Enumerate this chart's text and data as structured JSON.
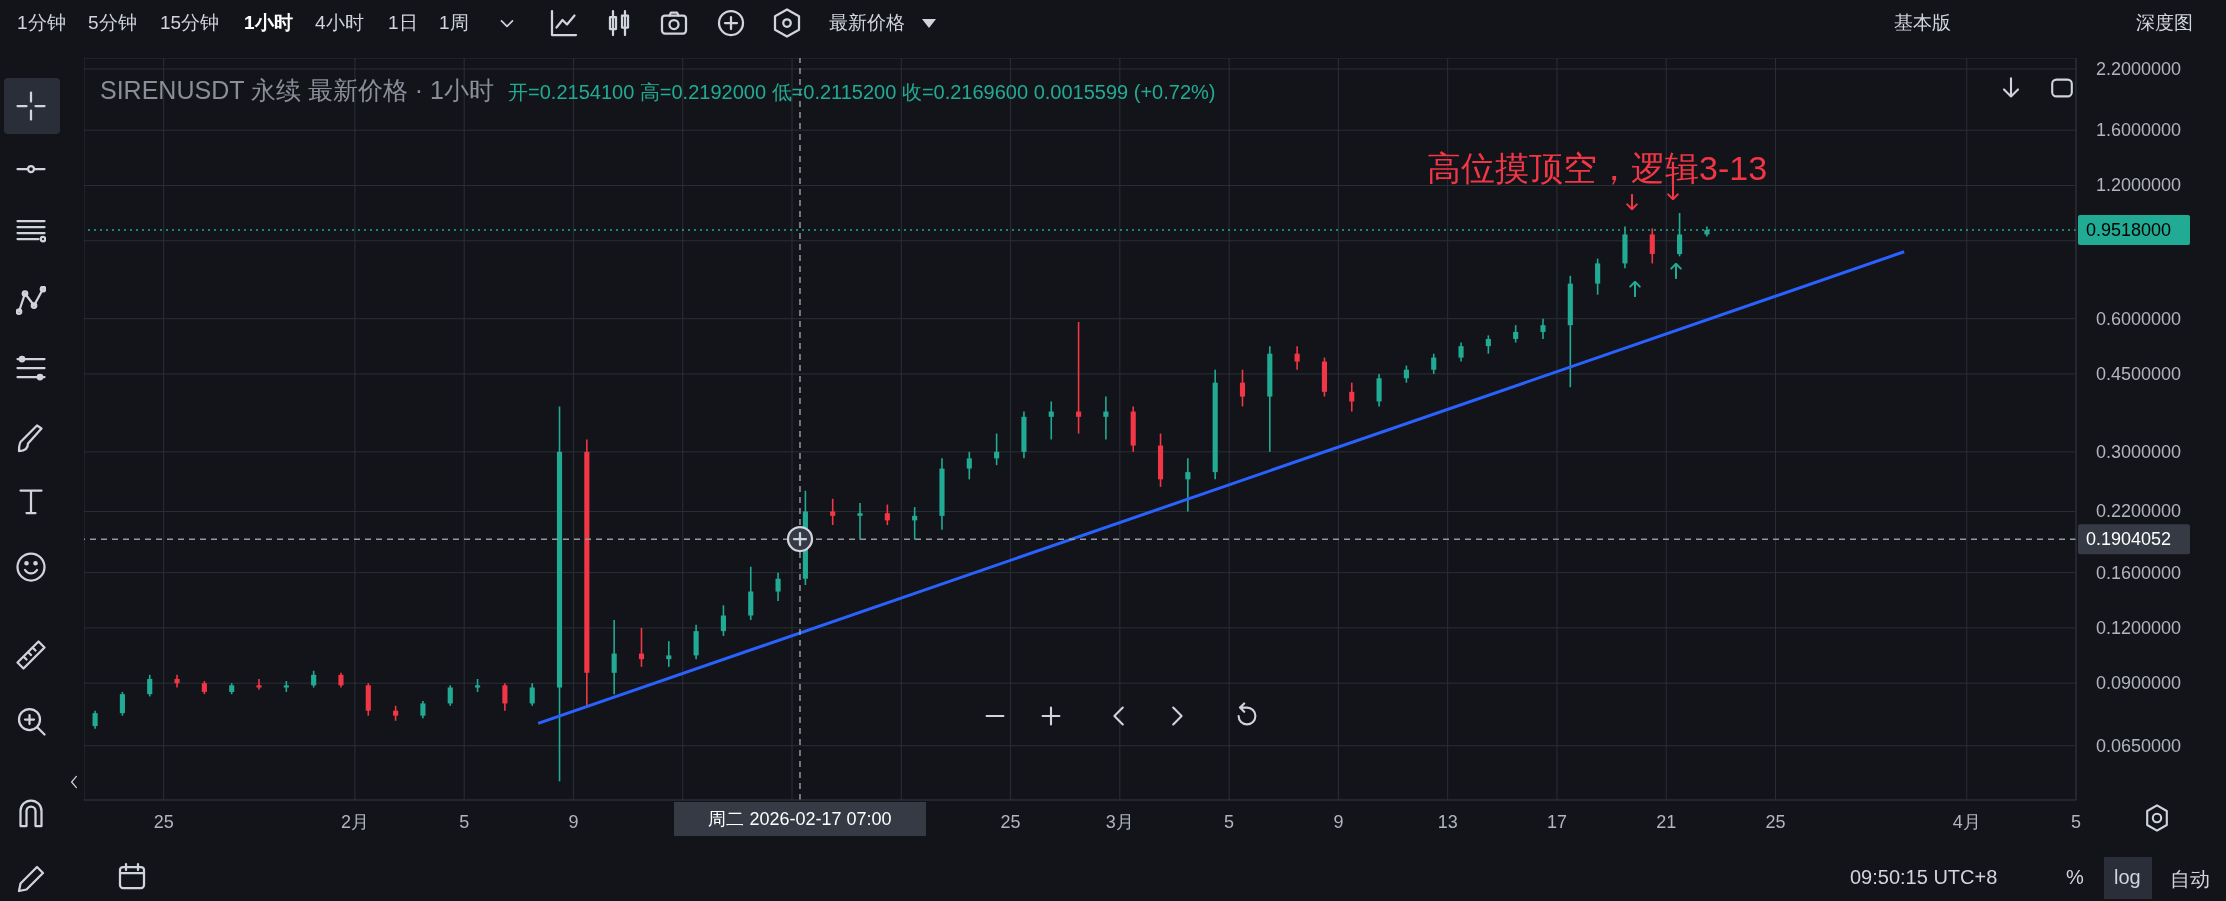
{
  "chart_data": {
    "type": "candlestick",
    "title": "SIRENUSDT 永续 最新价格 · 1小时",
    "subtitle": "开=0.2154100 高=0.2192000 低=0.2115200 收=0.2169600 0.0015599 (+0.72%)",
    "series": [
      {
        "type": "line",
        "color": "#2962ff",
        "x": [
          "2026-02-07T17:00",
          "2026-03-29T17:00"
        ],
        "values": [
          0.073,
          0.85
        ]
      },
      {
        "x": [
          "2026-01-22T12:00",
          "2026-01-23T12:00",
          "2026-01-24T12:00",
          "2026-01-25T12:00",
          "2026-01-26T12:00",
          "2026-01-27T12:00",
          "2026-01-28T12:00",
          "2026-01-29T12:00",
          "2026-01-30T12:00",
          "2026-01-31T12:00",
          "2026-02-01T12:00",
          "2026-02-02T12:00",
          "2026-02-03T12:00",
          "2026-02-04T12:00",
          "2026-02-05T12:00",
          "2026-02-06T12:00",
          "2026-02-07T12:00",
          "2026-02-08T12:00",
          "2026-02-09T12:00",
          "2026-02-10T12:00",
          "2026-02-11T12:00",
          "2026-02-12T12:00",
          "2026-02-13T12:00",
          "2026-02-14T12:00",
          "2026-02-15T12:00",
          "2026-02-16T12:00",
          "2026-02-17T12:00",
          "2026-02-18T12:00",
          "2026-02-19T12:00",
          "2026-02-20T12:00",
          "2026-02-21T12:00",
          "2026-02-22T12:00",
          "2026-02-23T12:00",
          "2026-02-24T12:00",
          "2026-02-25T12:00",
          "2026-02-26T12:00",
          "2026-02-27T12:00",
          "2026-02-28T12:00",
          "2026-03-01T12:00",
          "2026-03-02T12:00",
          "2026-03-03T12:00",
          "2026-03-04T12:00",
          "2026-03-05T12:00",
          "2026-03-06T12:00",
          "2026-03-07T12:00",
          "2026-03-08T12:00",
          "2026-03-09T12:00",
          "2026-03-10T12:00",
          "2026-03-11T12:00",
          "2026-03-12T12:00",
          "2026-03-13T12:00",
          "2026-03-14T12:00",
          "2026-03-15T12:00",
          "2026-03-16T12:00",
          "2026-03-17T12:00",
          "2026-03-18T12:00",
          "2026-03-19T12:00",
          "2026-03-20T12:00",
          "2026-03-21T12:00",
          "2026-03-22T12:00"
        ],
        "ohlc": [
          [
            0.072,
            0.078,
            0.071,
            0.077
          ],
          [
            0.077,
            0.086,
            0.076,
            0.085
          ],
          [
            0.085,
            0.094,
            0.084,
            0.092
          ],
          [
            0.092,
            0.094,
            0.088,
            0.09
          ],
          [
            0.09,
            0.091,
            0.085,
            0.086
          ],
          [
            0.086,
            0.09,
            0.085,
            0.089
          ],
          [
            0.089,
            0.092,
            0.087,
            0.088
          ],
          [
            0.088,
            0.091,
            0.086,
            0.089
          ],
          [
            0.089,
            0.096,
            0.088,
            0.094
          ],
          [
            0.094,
            0.095,
            0.088,
            0.089
          ],
          [
            0.089,
            0.09,
            0.076,
            0.078
          ],
          [
            0.078,
            0.08,
            0.074,
            0.076
          ],
          [
            0.076,
            0.082,
            0.075,
            0.081
          ],
          [
            0.081,
            0.089,
            0.08,
            0.088
          ],
          [
            0.088,
            0.092,
            0.086,
            0.089
          ],
          [
            0.089,
            0.09,
            0.078,
            0.081
          ],
          [
            0.081,
            0.09,
            0.08,
            0.088
          ],
          [
            0.088,
            0.38,
            0.054,
            0.3
          ],
          [
            0.3,
            0.32,
            0.08,
            0.095
          ],
          [
            0.095,
            0.125,
            0.085,
            0.105
          ],
          [
            0.105,
            0.12,
            0.098,
            0.102
          ],
          [
            0.102,
            0.112,
            0.098,
            0.104
          ],
          [
            0.104,
            0.122,
            0.102,
            0.118
          ],
          [
            0.118,
            0.135,
            0.115,
            0.128
          ],
          [
            0.128,
            0.165,
            0.125,
            0.145
          ],
          [
            0.145,
            0.16,
            0.138,
            0.155
          ],
          [
            0.155,
            0.245,
            0.15,
            0.22
          ],
          [
            0.22,
            0.235,
            0.205,
            0.215
          ],
          [
            0.215,
            0.23,
            0.19,
            0.218
          ],
          [
            0.218,
            0.228,
            0.205,
            0.21
          ],
          [
            0.21,
            0.225,
            0.19,
            0.215
          ],
          [
            0.215,
            0.29,
            0.2,
            0.275
          ],
          [
            0.275,
            0.3,
            0.26,
            0.29
          ],
          [
            0.29,
            0.33,
            0.28,
            0.3
          ],
          [
            0.3,
            0.37,
            0.29,
            0.36
          ],
          [
            0.36,
            0.39,
            0.32,
            0.37
          ],
          [
            0.37,
            0.59,
            0.33,
            0.36
          ],
          [
            0.36,
            0.4,
            0.32,
            0.37
          ],
          [
            0.37,
            0.38,
            0.3,
            0.31
          ],
          [
            0.31,
            0.33,
            0.25,
            0.26
          ],
          [
            0.26,
            0.29,
            0.22,
            0.27
          ],
          [
            0.27,
            0.46,
            0.26,
            0.43
          ],
          [
            0.43,
            0.46,
            0.38,
            0.4
          ],
          [
            0.4,
            0.52,
            0.3,
            0.5
          ],
          [
            0.5,
            0.52,
            0.46,
            0.48
          ],
          [
            0.48,
            0.49,
            0.4,
            0.41
          ],
          [
            0.41,
            0.43,
            0.37,
            0.39
          ],
          [
            0.39,
            0.45,
            0.38,
            0.44
          ],
          [
            0.44,
            0.47,
            0.43,
            0.46
          ],
          [
            0.46,
            0.5,
            0.45,
            0.49
          ],
          [
            0.49,
            0.53,
            0.48,
            0.52
          ],
          [
            0.52,
            0.55,
            0.5,
            0.54
          ],
          [
            0.54,
            0.58,
            0.53,
            0.56
          ],
          [
            0.56,
            0.6,
            0.54,
            0.58
          ],
          [
            0.58,
            0.75,
            0.42,
            0.72
          ],
          [
            0.72,
            0.82,
            0.68,
            0.8
          ],
          [
            0.8,
            0.97,
            0.78,
            0.93
          ],
          [
            0.93,
            0.96,
            0.8,
            0.84
          ],
          [
            0.84,
            1.04,
            0.83,
            0.93
          ],
          [
            0.93,
            0.97,
            0.92,
            0.9518
          ]
        ],
        "colors": [
          "#22ab94",
          "#22ab94",
          "#22ab94",
          "#f23645",
          "#f23645",
          "#22ab94",
          "#f23645",
          "#22ab94",
          "#22ab94",
          "#f23645",
          "#f23645",
          "#f23645",
          "#22ab94",
          "#22ab94",
          "#22ab94",
          "#f23645",
          "#22ab94",
          "#22ab94",
          "#f23645",
          "#22ab94",
          "#f23645",
          "#22ab94",
          "#22ab94",
          "#22ab94",
          "#22ab94",
          "#22ab94",
          "#22ab94",
          "#f23645",
          "#22ab94",
          "#f23645",
          "#22ab94",
          "#22ab94",
          "#22ab94",
          "#22ab94",
          "#22ab94",
          "#22ab94",
          "#f23645",
          "#22ab94",
          "#f23645",
          "#f23645",
          "#22ab94",
          "#22ab94",
          "#f23645",
          "#22ab94",
          "#f23645",
          "#f23645",
          "#f23645",
          "#22ab94",
          "#22ab94",
          "#22ab94",
          "#22ab94",
          "#22ab94",
          "#22ab94",
          "#22ab94",
          "#22ab94",
          "#22ab94",
          "#22ab94",
          "#f23645",
          "#22ab94",
          "#22ab94"
        ]
      }
    ],
    "xlim": [
      "2026-01-22T02:00",
      "2026-04-05"
    ],
    "xticks": [
      {
        "value": "2026-01-25",
        "label": "25"
      },
      {
        "value": "2026-02-01",
        "label": "2月"
      },
      {
        "value": "2026-02-05",
        "label": "5"
      },
      {
        "value": "2026-02-09",
        "label": "9"
      },
      {
        "value": "2026-02-13",
        "label": null
      },
      {
        "value": "2026-02-17",
        "label": null
      },
      {
        "value": "2026-02-21",
        "label": null
      },
      {
        "value": "2026-02-25",
        "label": "25"
      },
      {
        "value": "2026-03-01",
        "label": "3月"
      },
      {
        "value": "2026-03-05",
        "label": "5"
      },
      {
        "value": "2026-03-09",
        "label": "9"
      },
      {
        "value": "2026-03-13",
        "label": "13"
      },
      {
        "value": "2026-03-17",
        "label": "17"
      },
      {
        "value": "2026-03-21",
        "label": "21"
      },
      {
        "value": "2026-03-25",
        "label": "25"
      },
      {
        "value": "2026-04-01",
        "label": "4月"
      },
      {
        "value": "2026-04-05",
        "label": "5"
      }
    ],
    "ylim": [
      0.049,
      2.33
    ],
    "yticks": [
      {
        "value": 0.065,
        "label": "0.0650000"
      },
      {
        "value": 0.09,
        "label": "0.0900000"
      },
      {
        "value": 0.12,
        "label": "0.1200000"
      },
      {
        "value": 0.16,
        "label": "0.1600000"
      },
      {
        "value": 0.22,
        "label": "0.2200000"
      },
      {
        "value": 0.3,
        "label": "0.3000000"
      },
      {
        "value": 0.45,
        "label": "0.4500000"
      },
      {
        "value": 0.6,
        "label": "0.6000000"
      },
      {
        "value": 0.9,
        "label": null
      },
      {
        "value": 1.2,
        "label": "1.2000000"
      },
      {
        "value": 1.6,
        "label": "1.6000000"
      },
      {
        "value": 2.2,
        "label": "2.2000000"
      }
    ],
    "log": "y",
    "grid": true,
    "ref_lines": [
      {
        "axis": "y",
        "value": 0.9518,
        "label": "0.9518000",
        "color": "#22ab94",
        "line_style": "dotted"
      },
      {
        "axis": "y",
        "value": 0.1904052,
        "label": "0.1904052",
        "color": "#9598a1",
        "line_style": "dashed"
      },
      {
        "axis": "x",
        "value": "2026-02-17T07:00",
        "label": "周二 2026-02-17 07:00",
        "color": "#9598a1",
        "line_style": "dashed"
      }
    ],
    "annotations": [
      "高位摸顶空，逻辑3-13",
      "1分钟",
      "5分钟",
      "15分钟",
      "1小时",
      "4小时",
      "1日",
      "1周",
      "最新价格",
      "基本版",
      "深度图",
      "09:50:15 UTC+8",
      "%",
      "log",
      "自动"
    ]
  }
}
